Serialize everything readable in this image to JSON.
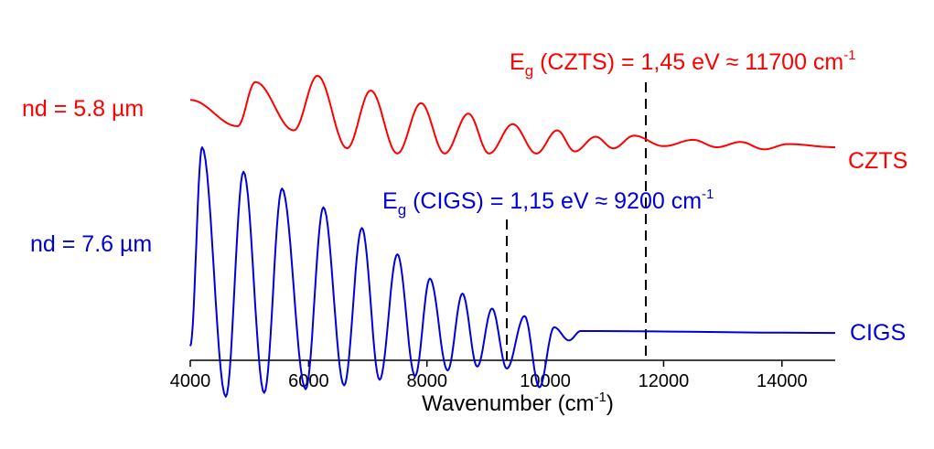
{
  "chart_data": {
    "type": "line",
    "title": "",
    "xlabel": "Wavenumber (cm",
    "xlabel_sup": "-1",
    "xlabel_close": ")",
    "ylabel": "",
    "xlim": [
      4000,
      14900
    ],
    "xticks": [
      4000,
      6000,
      8000,
      10000,
      12000,
      14000
    ],
    "yaxis_visible": false,
    "series": [
      {
        "name": "CZTS",
        "label": "CZTS",
        "color": "#ff0000",
        "thickness_label": "nd = 5.8 µm",
        "edge_prefix": "E",
        "edge_sub": "g",
        "edge_text": " (CZTS) = 1,45 eV ≈ 11700 cm",
        "edge_sup": "-1",
        "edge_x": 11700,
        "peaks_x": [
          5100,
          6150,
          7050,
          7900,
          8700,
          9450,
          10200,
          10850,
          11500,
          12500,
          13300,
          14100
        ],
        "peaks_y": [
          0.82,
          0.88,
          0.74,
          0.62,
          0.52,
          0.42,
          0.36,
          0.3,
          0.31,
          0.27,
          0.25,
          0.23
        ],
        "valleys_x": [
          4800,
          5750,
          6650,
          7500,
          8300,
          9050,
          9850,
          10500,
          11150,
          12000,
          12900,
          13700
        ],
        "valleys_y": [
          0.4,
          0.36,
          0.19,
          0.14,
          0.14,
          0.14,
          0.14,
          0.16,
          0.19,
          0.21,
          0.2,
          0.18
        ]
      },
      {
        "name": "CIGS",
        "label": "CIGS",
        "color": "#0000dd",
        "thickness_label": "nd = 7.6 µm",
        "edge_prefix": "E",
        "edge_sub": "g",
        "edge_text": " (CIGS) = 1,15 eV ≈ 9200 cm",
        "edge_sup": "-1",
        "edge_x": 9350,
        "peaks_x": [
          4200,
          4900,
          5550,
          6250,
          6900,
          7500,
          8050,
          8600,
          9100,
          9650,
          10150,
          10600
        ],
        "peaks_y": [
          0.98,
          0.85,
          0.76,
          0.66,
          0.55,
          0.41,
          0.28,
          0.2,
          0.12,
          0.08,
          0.02,
          0.0
        ],
        "valleys_x": [
          4600,
          5250,
          5950,
          6600,
          7200,
          7800,
          8350,
          8850,
          9350,
          9900,
          10400
        ],
        "valleys_y": [
          -0.35,
          -0.33,
          -0.31,
          -0.29,
          -0.26,
          -0.24,
          -0.21,
          -0.19,
          -0.2,
          -0.3,
          -0.05
        ]
      }
    ]
  }
}
